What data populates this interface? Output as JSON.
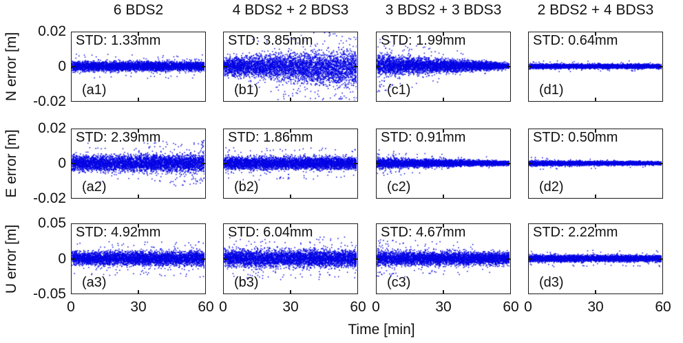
{
  "figure": {
    "background": "#ffffff",
    "dot_color": "#0404e4",
    "border_color": "#1a1a1a",
    "text_color": "#111111"
  },
  "chart_data": {
    "type": "scatter",
    "xlabel": "Time [min]",
    "x_range": [
      0,
      60
    ],
    "x_ticks": [
      "0",
      "30",
      "60"
    ],
    "grid": false,
    "legend": "none",
    "columns": [
      {
        "title": "6 BDS2"
      },
      {
        "title": "4 BDS2 + 2 BDS3"
      },
      {
        "title": "3 BDS2 + 3 BDS3"
      },
      {
        "title": "2 BDS2 + 4 BDS3"
      }
    ],
    "rows": [
      {
        "ylabel": "N error [m]",
        "ylim": [
          -0.02,
          0.02
        ],
        "yticks": [
          "0.02",
          "0",
          "-0.02"
        ]
      },
      {
        "ylabel": "E error [m]",
        "ylim": [
          -0.02,
          0.02
        ],
        "yticks": [
          "0.02",
          "0",
          "-0.02"
        ]
      },
      {
        "ylabel": "U error [m]",
        "ylim": [
          -0.05,
          0.05
        ],
        "yticks": [
          "0.05",
          "0",
          "-0.05"
        ]
      }
    ],
    "panels": [
      {
        "id": "a1",
        "row": 0,
        "col": 0,
        "label": "(a1)",
        "std": "STD: 1.33mm",
        "std_mm": 1.33,
        "sigma_mm": [
          1.35,
          1.35
        ],
        "drift_mm": [
          0,
          0
        ],
        "outliers": {
          "count": 40,
          "xbias": "none",
          "down_bias": 0.5
        },
        "pattern": "uniform",
        "seed": 11
      },
      {
        "id": "b1",
        "row": 0,
        "col": 1,
        "label": "(b1)",
        "std": "STD: 3.85mm",
        "std_mm": 3.85,
        "sigma_mm": [
          2.4,
          5.4
        ],
        "drift_mm": [
          0,
          -1.2
        ],
        "outliers": {
          "count": 150,
          "xbias": "right",
          "down_bias": 0.72
        },
        "pattern": "diverging",
        "seed": 22
      },
      {
        "id": "c1",
        "row": 0,
        "col": 2,
        "label": "(c1)",
        "std": "STD: 1.99mm",
        "std_mm": 1.99,
        "sigma_mm": [
          3.0,
          0.85
        ],
        "drift_mm": [
          0.5,
          0.1
        ],
        "outliers": {
          "count": 60,
          "xbias": "left",
          "down_bias": 0.5
        },
        "pattern": "converging",
        "seed": 33
      },
      {
        "id": "d1",
        "row": 0,
        "col": 3,
        "label": "(d1)",
        "std": "STD: 0.64mm",
        "std_mm": 0.64,
        "sigma_mm": [
          0.65,
          0.6
        ],
        "drift_mm": [
          0,
          0
        ],
        "outliers": {
          "count": 25,
          "xbias": "none",
          "down_bias": 0.5
        },
        "pattern": "uniform",
        "seed": 44
      },
      {
        "id": "a2",
        "row": 1,
        "col": 0,
        "label": "(a2)",
        "std": "STD: 2.39mm",
        "std_mm": 2.39,
        "sigma_mm": [
          2.2,
          2.6
        ],
        "drift_mm": [
          0,
          0
        ],
        "outliers": {
          "count": 90,
          "xbias": "right",
          "down_bias": 0.45
        },
        "pattern": "uniform",
        "seed": 55
      },
      {
        "id": "b2",
        "row": 1,
        "col": 1,
        "label": "(b2)",
        "std": "STD: 1.86mm",
        "std_mm": 1.86,
        "sigma_mm": [
          1.9,
          1.75
        ],
        "drift_mm": [
          0,
          0
        ],
        "outliers": {
          "count": 60,
          "xbias": "none",
          "down_bias": 0.5
        },
        "pattern": "uniform",
        "seed": 66
      },
      {
        "id": "c2",
        "row": 1,
        "col": 2,
        "label": "(c2)",
        "std": "STD: 0.91mm",
        "std_mm": 0.91,
        "sigma_mm": [
          1.5,
          0.55
        ],
        "drift_mm": [
          0,
          0
        ],
        "outliers": {
          "count": 45,
          "xbias": "left",
          "down_bias": 0.5
        },
        "pattern": "converging",
        "seed": 77
      },
      {
        "id": "d2",
        "row": 1,
        "col": 3,
        "label": "(d2)",
        "std": "STD: 0.50mm",
        "std_mm": 0.5,
        "sigma_mm": [
          0.7,
          0.45
        ],
        "drift_mm": [
          0,
          0
        ],
        "outliers": {
          "count": 25,
          "xbias": "left",
          "down_bias": 0.5
        },
        "pattern": "converging",
        "seed": 88
      },
      {
        "id": "a3",
        "row": 2,
        "col": 0,
        "label": "(a3)",
        "std": "STD: 4.92mm",
        "std_mm": 4.92,
        "sigma_mm": [
          4.5,
          5.3
        ],
        "drift_mm": [
          0,
          0
        ],
        "outliers": {
          "count": 70,
          "xbias": "none",
          "down_bias": 0.55
        },
        "pattern": "uniform",
        "seed": 99
      },
      {
        "id": "b3",
        "row": 2,
        "col": 1,
        "label": "(b3)",
        "std": "STD: 6.04mm",
        "std_mm": 6.04,
        "sigma_mm": [
          6.0,
          5.9
        ],
        "drift_mm": [
          0,
          0
        ],
        "outliers": {
          "count": 80,
          "xbias": "none",
          "down_bias": 0.5
        },
        "pattern": "uniform",
        "seed": 110
      },
      {
        "id": "c3",
        "row": 2,
        "col": 2,
        "label": "(c3)",
        "std": "STD: 4.67mm",
        "std_mm": 4.67,
        "sigma_mm": [
          5.3,
          4.2
        ],
        "drift_mm": [
          0,
          0
        ],
        "outliers": {
          "count": 70,
          "xbias": "left",
          "down_bias": 0.5
        },
        "pattern": "converging",
        "seed": 121
      },
      {
        "id": "d3",
        "row": 2,
        "col": 3,
        "label": "(d3)",
        "std": "STD: 2.22mm",
        "std_mm": 2.22,
        "sigma_mm": [
          2.35,
          2.2
        ],
        "drift_mm": [
          0,
          0
        ],
        "outliers": {
          "count": 35,
          "xbias": "none",
          "down_bias": 0.5
        },
        "pattern": "uniform",
        "seed": 132
      }
    ]
  }
}
